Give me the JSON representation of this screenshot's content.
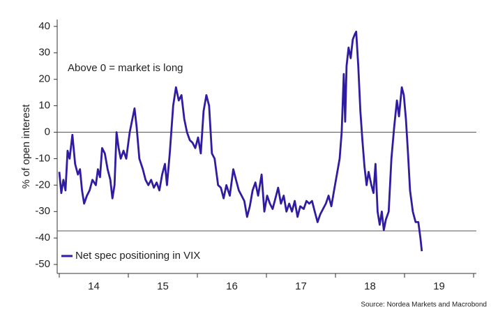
{
  "chart_data": {
    "type": "line",
    "y_label": "% of open interest",
    "annotation": "Above 0 = market is long",
    "source": "Source: Nordea Markets and Macrobond",
    "xlim": [
      2013.97,
      2020.04
    ],
    "ylim": [
      -53.4,
      42.6
    ],
    "yticks": [
      40,
      30,
      20,
      10,
      0,
      -10,
      -20,
      -30,
      -40,
      -50
    ],
    "xticks": [
      {
        "value": 2014.5,
        "label": "14"
      },
      {
        "value": 2015.5,
        "label": "15"
      },
      {
        "value": 2016.5,
        "label": "16"
      },
      {
        "value": 2017.5,
        "label": "17"
      },
      {
        "value": 2018.5,
        "label": "18"
      },
      {
        "value": 2019.5,
        "label": "19"
      }
    ],
    "reference_lines": [
      0,
      -37.3
    ],
    "legend": "bottom-left",
    "x": [
      2014.0,
      2014.03,
      2014.06,
      2014.09,
      2014.12,
      2014.15,
      2014.19,
      2014.23,
      2014.27,
      2014.3,
      2014.33,
      2014.36,
      2014.4,
      2014.44,
      2014.48,
      2014.53,
      2014.56,
      2014.59,
      2014.62,
      2014.66,
      2014.7,
      2014.74,
      2014.77,
      2014.8,
      2014.83,
      2014.86,
      2014.89,
      2014.93,
      2014.97,
      2015.02,
      2015.09,
      2015.12,
      2015.16,
      2015.21,
      2015.25,
      2015.29,
      2015.33,
      2015.37,
      2015.41,
      2015.45,
      2015.49,
      2015.53,
      2015.56,
      2015.6,
      2015.65,
      2015.69,
      2015.73,
      2015.77,
      2015.81,
      2015.85,
      2015.89,
      2015.93,
      2015.97,
      2016.01,
      2016.05,
      2016.09,
      2016.13,
      2016.17,
      2016.21,
      2016.25,
      2016.3,
      2016.34,
      2016.38,
      2016.42,
      2016.47,
      2016.52,
      2016.56,
      2016.6,
      2016.64,
      2016.68,
      2016.72,
      2016.76,
      2016.8,
      2016.84,
      2016.88,
      2016.93,
      2016.97,
      2017.01,
      2017.05,
      2017.09,
      2017.13,
      2017.17,
      2017.21,
      2017.25,
      2017.29,
      2017.33,
      2017.37,
      2017.41,
      2017.45,
      2017.49,
      2017.54,
      2017.58,
      2017.62,
      2017.66,
      2017.7,
      2017.74,
      2017.78,
      2017.82,
      2017.86,
      2017.9,
      2017.94,
      2017.98,
      2018.02,
      2018.06,
      2018.09,
      2018.12,
      2018.14,
      2018.16,
      2018.19,
      2018.22,
      2018.25,
      2018.28,
      2018.3,
      2018.33,
      2018.36,
      2018.39,
      2018.42,
      2018.45,
      2018.48,
      2018.52,
      2018.55,
      2018.58,
      2018.61,
      2018.64,
      2018.67,
      2018.7,
      2018.73,
      2018.77,
      2018.81,
      2018.85,
      2018.89,
      2018.92,
      2018.96,
      2018.99,
      2019.02,
      2019.05,
      2019.08,
      2019.12,
      2019.16,
      2019.2,
      2019.23,
      2019.25
    ],
    "series": [
      {
        "name": "Net spec positioning in VIX",
        "color": "#2f1ca3",
        "values": [
          -15,
          -23,
          -18,
          -22,
          -7,
          -10,
          -1,
          -12,
          -16,
          -14,
          -22,
          -27,
          -24,
          -22,
          -18,
          -20,
          -14,
          -17,
          -6,
          -8,
          -14,
          -18,
          -25,
          -20,
          0,
          -6,
          -10,
          -7,
          -10,
          0,
          9,
          2,
          -10,
          -14,
          -18,
          -20,
          -18,
          -21,
          -19,
          -22,
          -16,
          -12,
          -20,
          -8,
          10,
          17,
          12,
          14,
          5,
          0,
          -3,
          -4,
          -6,
          -2,
          -8,
          8,
          14,
          10,
          -8,
          -10,
          -20,
          -21,
          -25,
          -20,
          -24,
          -14,
          -18,
          -22,
          -24,
          -26,
          -32,
          -28,
          -22,
          -19,
          -24,
          -16,
          -30,
          -24,
          -27,
          -29,
          -25,
          -21,
          -27,
          -24,
          -30,
          -27,
          -30,
          -26,
          -32,
          -28,
          -29,
          -26,
          -27,
          -26,
          -30,
          -34,
          -31,
          -29,
          -27,
          -24,
          -28,
          -22,
          -16,
          -10,
          0,
          22,
          4,
          25,
          32,
          28,
          35,
          37,
          38,
          25,
          8,
          -3,
          -13,
          -20,
          -15,
          -20,
          -23,
          -12,
          -30,
          -35,
          -30,
          -37,
          -33,
          -30,
          -10,
          2,
          12,
          6,
          17,
          14,
          5,
          -8,
          -22,
          -30,
          -34,
          -34,
          -40,
          -45
        ]
      }
    ]
  }
}
